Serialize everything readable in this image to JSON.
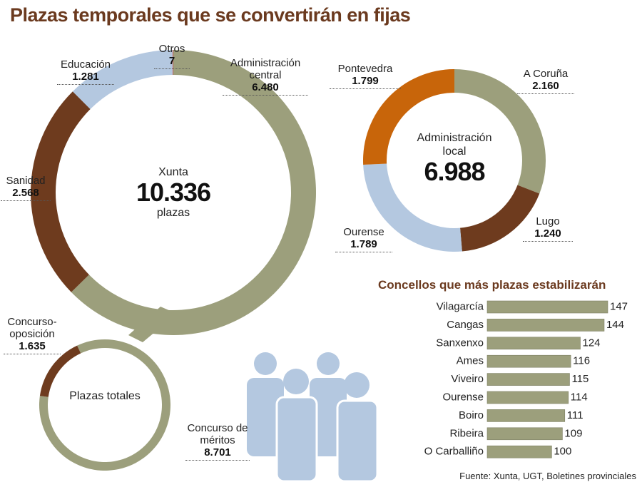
{
  "title": "Plazas temporales que se convertirán en fijas",
  "source": "Fuente: Xunta, UGT, Boletines provinciales",
  "chart_data": [
    {
      "type": "donut",
      "center_title": "Xunta",
      "total": "10.336",
      "center_unit": "plazas",
      "categories": [
        "Administración central",
        "Sanidad",
        "Educación",
        "Otros"
      ],
      "values": [
        6480,
        2568,
        1281,
        7
      ],
      "value_labels": [
        "6.480",
        "2.568",
        "1.281",
        "7"
      ],
      "colors": [
        "#9c9f7c",
        "#6e3b1e",
        "#b4c8e0",
        "#c0392b"
      ]
    },
    {
      "type": "donut",
      "center_title": "Administración local",
      "total": "6.988",
      "categories": [
        "A Coruña",
        "Lugo",
        "Ourense",
        "Pontevedra"
      ],
      "values": [
        2160,
        1240,
        1789,
        1799
      ],
      "value_labels": [
        "2.160",
        "1.240",
        "1.789",
        "1.799"
      ],
      "colors": [
        "#9c9f7c",
        "#6e3b1e",
        "#b4c8e0",
        "#c8650a"
      ]
    },
    {
      "type": "donut",
      "center_title": "Plazas totales",
      "categories": [
        "Concurso de méritos",
        "Concurso-oposición"
      ],
      "values": [
        8701,
        1635
      ],
      "value_labels": [
        "8.701",
        "1.635"
      ],
      "colors": [
        "#9c9f7c",
        "#6e3b1e"
      ]
    },
    {
      "type": "hbar",
      "title": "Concellos que más plazas estabilizarán",
      "categories": [
        "Vilagarcía",
        "Cangas",
        "Sanxenxo",
        "Ames",
        "Viveiro",
        "Ourense",
        "Boiro",
        "Ribeira",
        "O Carballiño"
      ],
      "values": [
        147,
        144,
        124,
        116,
        115,
        114,
        111,
        109,
        100
      ],
      "xlim": [
        46,
        147
      ],
      "color": "#9c9f7c"
    }
  ]
}
